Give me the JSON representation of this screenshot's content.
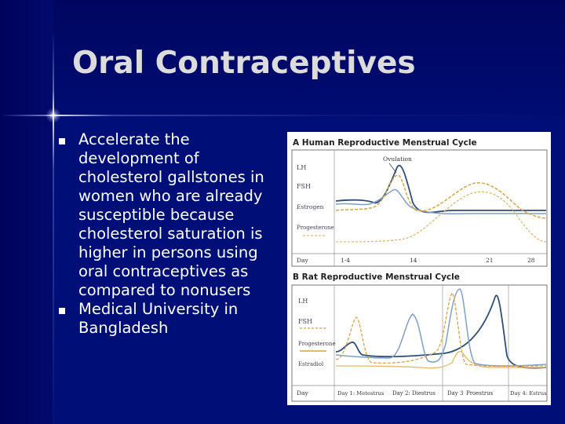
{
  "slide": {
    "title": "Oral Contraceptives",
    "bullets": [
      "Accelerate the development of cholesterol gallstones in women who are already susceptible because cholesterol saturation is higher in persons using oral contraceptives as compared to nonusers",
      " Medical University in Bangladesh"
    ]
  },
  "figure": {
    "panel_a": {
      "title": "A Human Reproductive Menstrual Cycle",
      "annotation": "Ovulation",
      "series_labels": [
        "LH",
        "FSH",
        "Estrogen",
        "Progesterone"
      ],
      "axis_labels": [
        "Day",
        "1-4",
        "14",
        "21",
        "28"
      ]
    },
    "panel_b": {
      "title": "B Rat Reproductive Menstrual Cycle",
      "series_labels": [
        "LH",
        "FSH",
        "Progesterone",
        "Estradiol"
      ],
      "axis_labels": [
        "Day",
        "Day 1: Metestrus",
        "Day 2: Diestrus",
        "Day 3",
        "Proestrus",
        "Day 4: Estrus"
      ]
    },
    "colors": {
      "lh": "#2d4f7c",
      "fsh": "#d9a440",
      "estrogen": "#7f9fc7",
      "progesterone": "#e3b868"
    }
  }
}
